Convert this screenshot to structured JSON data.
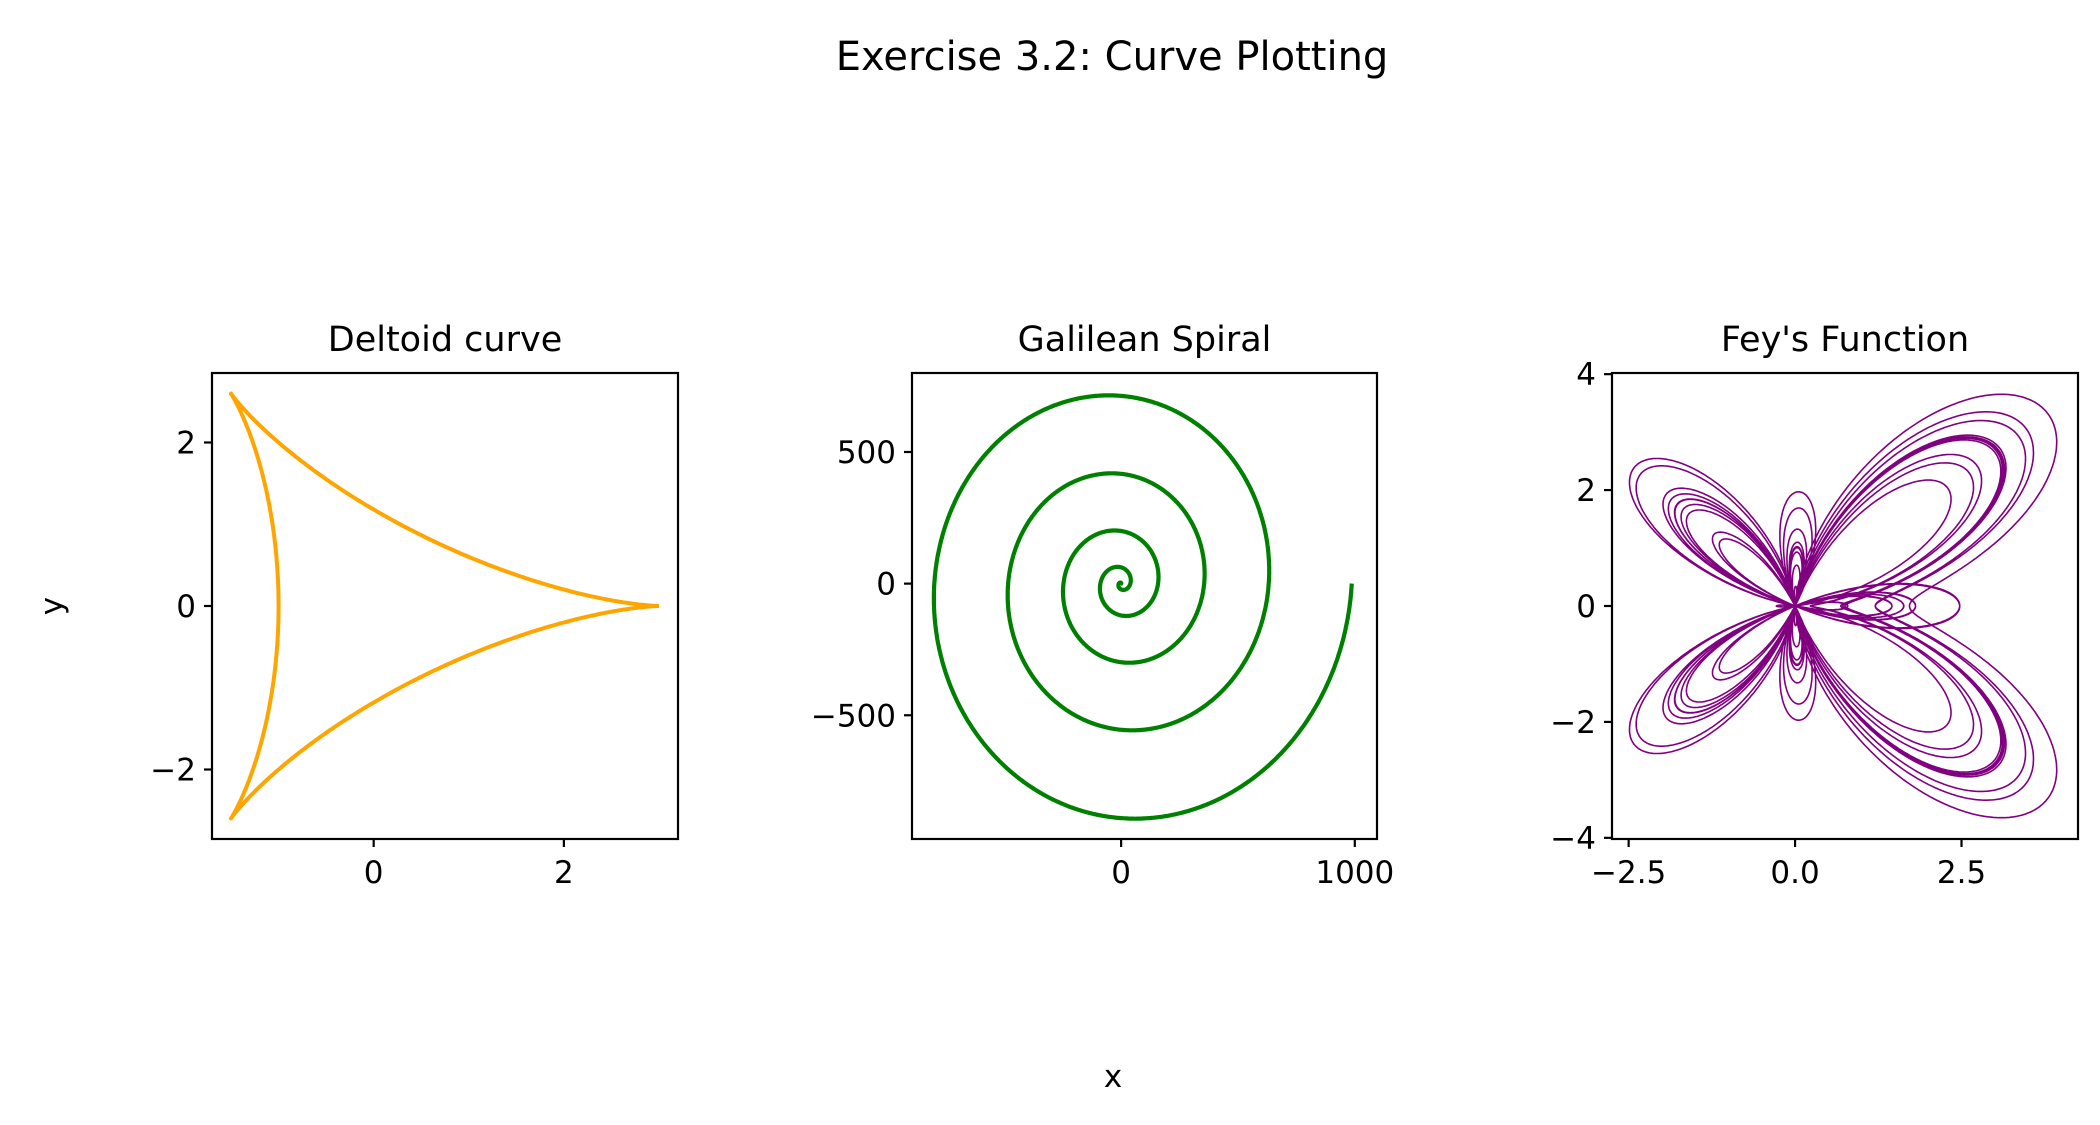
{
  "figure": {
    "title": "Exercise 3.2: Curve Plotting",
    "xlabel": "x",
    "ylabel": "y"
  },
  "chart_data": [
    {
      "type": "line",
      "title": "Deltoid curve",
      "curve": "deltoid",
      "equation": {
        "x": "2cos(t) + cos(2t)",
        "y": "2sin(t) - sin(2t)",
        "t_range": [
          0,
          6.2832
        ]
      },
      "color": "#FFA500",
      "xlim": [
        -1.7,
        3.2
      ],
      "ylim": [
        -2.85,
        2.85
      ],
      "xticks": [
        0,
        2
      ],
      "xtick_labels": [
        "0",
        "2"
      ],
      "yticks": [
        -2,
        0,
        2
      ],
      "ytick_labels": [
        "−2",
        "0",
        "2"
      ],
      "grid": false
    },
    {
      "type": "line",
      "title": "Galilean Spiral",
      "curve": "galilean",
      "equation": {
        "r": "θ²",
        "theta_range": [
          0,
          31.4159
        ]
      },
      "color": "#008000",
      "xlim": [
        -895,
        1095
      ],
      "ylim": [
        -970,
        800
      ],
      "xticks": [
        0,
        1000
      ],
      "xtick_labels": [
        "0",
        "1000"
      ],
      "yticks": [
        -500,
        0,
        500
      ],
      "ytick_labels": [
        "−500",
        "0",
        "500"
      ],
      "grid": false
    },
    {
      "type": "line",
      "title": "Fey's Function",
      "curve": "fey",
      "equation": {
        "r": "e^cos(θ) − 2cos(4θ) + sin⁵(θ/12)",
        "theta_range": [
          0,
          150.796
        ]
      },
      "color": "#800080",
      "xlim": [
        -2.75,
        4.25
      ],
      "ylim": [
        -4.02,
        4.02
      ],
      "xticks": [
        -2.5,
        0,
        2.5
      ],
      "xtick_labels": [
        "−2.5",
        "0.0",
        "2.5"
      ],
      "yticks": [
        -4,
        -2,
        0,
        2,
        4
      ],
      "ytick_labels": [
        "−4",
        "−2",
        "0",
        "2",
        "4"
      ],
      "grid": false
    }
  ]
}
